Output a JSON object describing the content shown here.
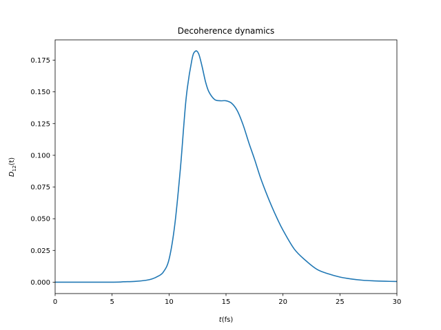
{
  "chart_data": {
    "type": "line",
    "title": "Decoherence dynamics",
    "xlabel_main": "t",
    "xlabel_unit": "(fs)",
    "ylabel_var": "D",
    "ylabel_sub": "12",
    "ylabel_arg": "(t)",
    "xlim": [
      0,
      30
    ],
    "ylim": [
      -0.009,
      0.191
    ],
    "xticks": [
      0,
      5,
      10,
      15,
      20,
      25,
      30
    ],
    "xtick_labels": [
      "0",
      "5",
      "10",
      "15",
      "20",
      "25",
      "30"
    ],
    "yticks": [
      0.0,
      0.025,
      0.05,
      0.075,
      0.1,
      0.125,
      0.15,
      0.175
    ],
    "ytick_labels": [
      "0.000",
      "0.025",
      "0.050",
      "0.075",
      "0.100",
      "0.125",
      "0.150",
      "0.175"
    ],
    "grid": false,
    "line_color": "#1f77b4",
    "series": [
      {
        "x": [
          0,
          5,
          6,
          7,
          8,
          8.5,
          9,
          9.5,
          10,
          10.5,
          11,
          11.5,
          12,
          12.3,
          12.6,
          12.9,
          13.2,
          13.5,
          14,
          14.5,
          15,
          15.5,
          16,
          16.5,
          17,
          17.5,
          18,
          18.5,
          19,
          19.5,
          20,
          21,
          22,
          23,
          24,
          25,
          26,
          27,
          28,
          29,
          30
        ],
        "y": [
          0.0,
          0.0,
          0.0003,
          0.0006,
          0.0015,
          0.0025,
          0.0045,
          0.008,
          0.018,
          0.045,
          0.09,
          0.145,
          0.175,
          0.182,
          0.18,
          0.17,
          0.158,
          0.15,
          0.144,
          0.143,
          0.143,
          0.141,
          0.135,
          0.124,
          0.11,
          0.097,
          0.083,
          0.071,
          0.06,
          0.05,
          0.041,
          0.026,
          0.017,
          0.01,
          0.0065,
          0.004,
          0.0025,
          0.0015,
          0.001,
          0.0007,
          0.0005
        ]
      }
    ]
  }
}
